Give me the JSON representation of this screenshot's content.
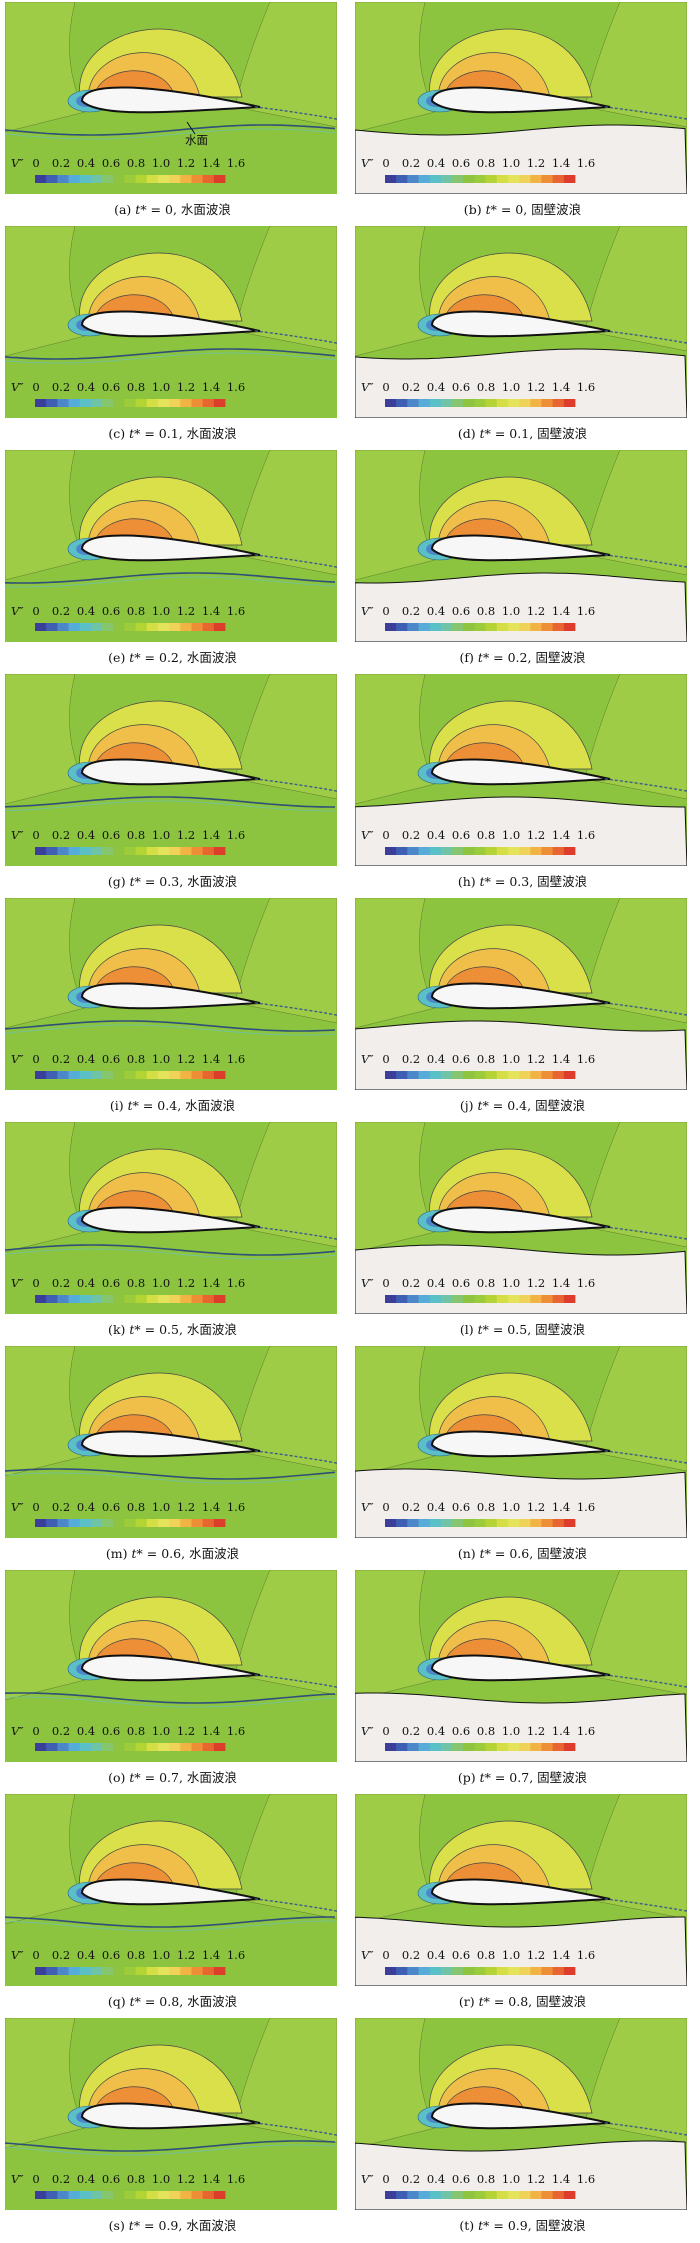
{
  "colorbar": {
    "symbol": "V″",
    "ticks": [
      "0",
      "0.2",
      "0.4",
      "0.6",
      "0.8",
      "1.0",
      "1.2",
      "1.4",
      "1.6"
    ],
    "colors": [
      "#3b3f9a",
      "#3f5fb4",
      "#4e87c9",
      "#55acd8",
      "#5bbfc7",
      "#6fc3a7",
      "#86c66e",
      "#8fc441",
      "#9ccc3c",
      "#b4d436",
      "#d3df45",
      "#e5e35a",
      "#eed25a",
      "#f2b345",
      "#ee8e36",
      "#e66530",
      "#dd3d2b"
    ]
  },
  "annotation": {
    "water_surface": "水面"
  },
  "panels": [
    {
      "letter": "a",
      "t": "0",
      "type": "水面波浪",
      "surface": "water"
    },
    {
      "letter": "b",
      "t": "0",
      "type": "固壁波浪",
      "surface": "wall"
    },
    {
      "letter": "c",
      "t": "0.1",
      "type": "水面波浪",
      "surface": "water"
    },
    {
      "letter": "d",
      "t": "0.1",
      "type": "固壁波浪",
      "surface": "wall"
    },
    {
      "letter": "e",
      "t": "0.2",
      "type": "水面波浪",
      "surface": "water"
    },
    {
      "letter": "f",
      "t": "0.2",
      "type": "固壁波浪",
      "surface": "wall"
    },
    {
      "letter": "g",
      "t": "0.3",
      "type": "水面波浪",
      "surface": "water"
    },
    {
      "letter": "h",
      "t": "0.3",
      "type": "固壁波浪",
      "surface": "wall"
    },
    {
      "letter": "i",
      "t": "0.4",
      "type": "水面波浪",
      "surface": "water"
    },
    {
      "letter": "j",
      "t": "0.4",
      "type": "固壁波浪",
      "surface": "wall"
    },
    {
      "letter": "k",
      "t": "0.5",
      "type": "水面波浪",
      "surface": "water"
    },
    {
      "letter": "l",
      "t": "0.5",
      "type": "固壁波浪",
      "surface": "wall"
    },
    {
      "letter": "m",
      "t": "0.6",
      "type": "水面波浪",
      "surface": "water"
    },
    {
      "letter": "n",
      "t": "0.6",
      "type": "固壁波浪",
      "surface": "wall"
    },
    {
      "letter": "o",
      "t": "0.7",
      "type": "水面波浪",
      "surface": "water"
    },
    {
      "letter": "p",
      "t": "0.7",
      "type": "固壁波浪",
      "surface": "wall"
    },
    {
      "letter": "q",
      "t": "0.8",
      "type": "水面波浪",
      "surface": "water"
    },
    {
      "letter": "r",
      "t": "0.8",
      "type": "固壁波浪",
      "surface": "wall"
    },
    {
      "letter": "s",
      "t": "0.9",
      "type": "水面波浪",
      "surface": "water"
    },
    {
      "letter": "t",
      "t": "0.9",
      "type": "固壁波浪",
      "surface": "wall"
    }
  ]
}
